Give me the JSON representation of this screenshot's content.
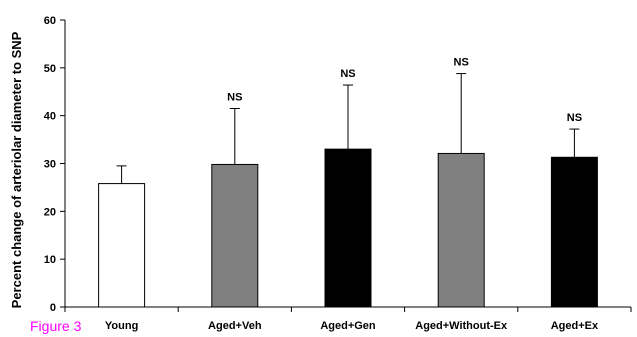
{
  "figure_label": "Figure 3",
  "colors": {
    "figure_label": "#ff00ff",
    "white_bar": "#ffffff",
    "gray_bar": "#808080",
    "black_bar": "#000000",
    "axis": "#000000"
  },
  "chart_data": {
    "type": "bar",
    "title": "",
    "xlabel": "",
    "ylabel": "Percent change of arteriolar diameter to SNP",
    "ylim": [
      0,
      60
    ],
    "yticks": [
      0,
      10,
      20,
      30,
      40,
      50,
      60
    ],
    "grid": false,
    "categories": [
      "Young",
      "Aged+Veh",
      "Aged+Gen",
      "Aged+Without-Ex",
      "Aged+Ex"
    ],
    "values": [
      25.8,
      29.8,
      33.0,
      32.1,
      31.3
    ],
    "error_upper": [
      3.7,
      11.7,
      13.4,
      16.7,
      5.9
    ],
    "bar_fill": [
      "white",
      "gray",
      "black",
      "gray",
      "black"
    ],
    "annotations": [
      "",
      "NS",
      "NS",
      "NS",
      "NS"
    ]
  }
}
